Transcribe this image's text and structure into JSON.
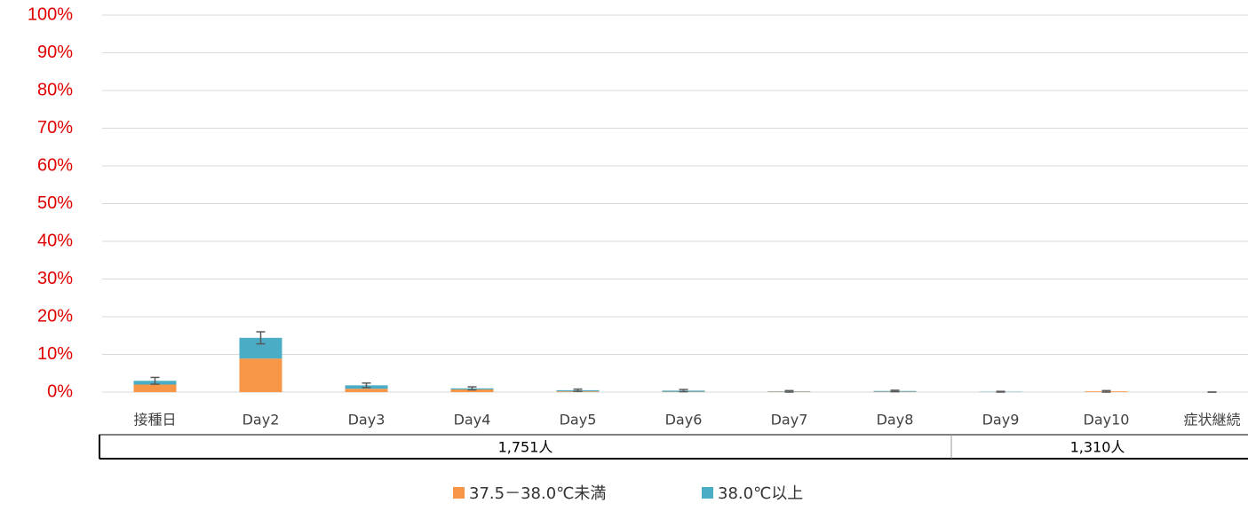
{
  "chart_data": {
    "type": "bar",
    "stacked": true,
    "categories": [
      "接種日",
      "Day2",
      "Day3",
      "Day4",
      "Day5",
      "Day6",
      "Day7",
      "Day8",
      "Day9",
      "Day10",
      "症状継続"
    ],
    "series": [
      {
        "name": "37.5－38.0℃未満",
        "color": "#f79646",
        "values": [
          2.0,
          8.9,
          0.9,
          0.7,
          0.2,
          0.1,
          0.1,
          0.1,
          0.0,
          0.2,
          0.0
        ]
      },
      {
        "name": "38.0℃以上",
        "color": "#4bacc6",
        "values": [
          1.0,
          5.5,
          0.9,
          0.3,
          0.3,
          0.3,
          0.1,
          0.2,
          0.1,
          0.0,
          0.0
        ]
      }
    ],
    "errors": [
      0.9,
      1.6,
      0.6,
      0.4,
      0.3,
      0.3,
      0.2,
      0.2,
      0.1,
      0.2,
      0.0
    ],
    "ylim": [
      0,
      100
    ],
    "yticks": [
      {
        "value": 0,
        "label": "0%"
      },
      {
        "value": 10,
        "label": "10%"
      },
      {
        "value": 20,
        "label": "20%"
      },
      {
        "value": 30,
        "label": "30%"
      },
      {
        "value": 40,
        "label": "40%"
      },
      {
        "value": 50,
        "label": "50%"
      },
      {
        "value": 60,
        "label": "60%"
      },
      {
        "value": 70,
        "label": "70%"
      },
      {
        "value": 80,
        "label": "80%"
      },
      {
        "value": 90,
        "label": "90%"
      },
      {
        "value": 100,
        "label": "100%"
      }
    ],
    "grid": true,
    "sample_sizes": [
      "1,751人",
      "1,310人"
    ],
    "legend": "bottom"
  }
}
